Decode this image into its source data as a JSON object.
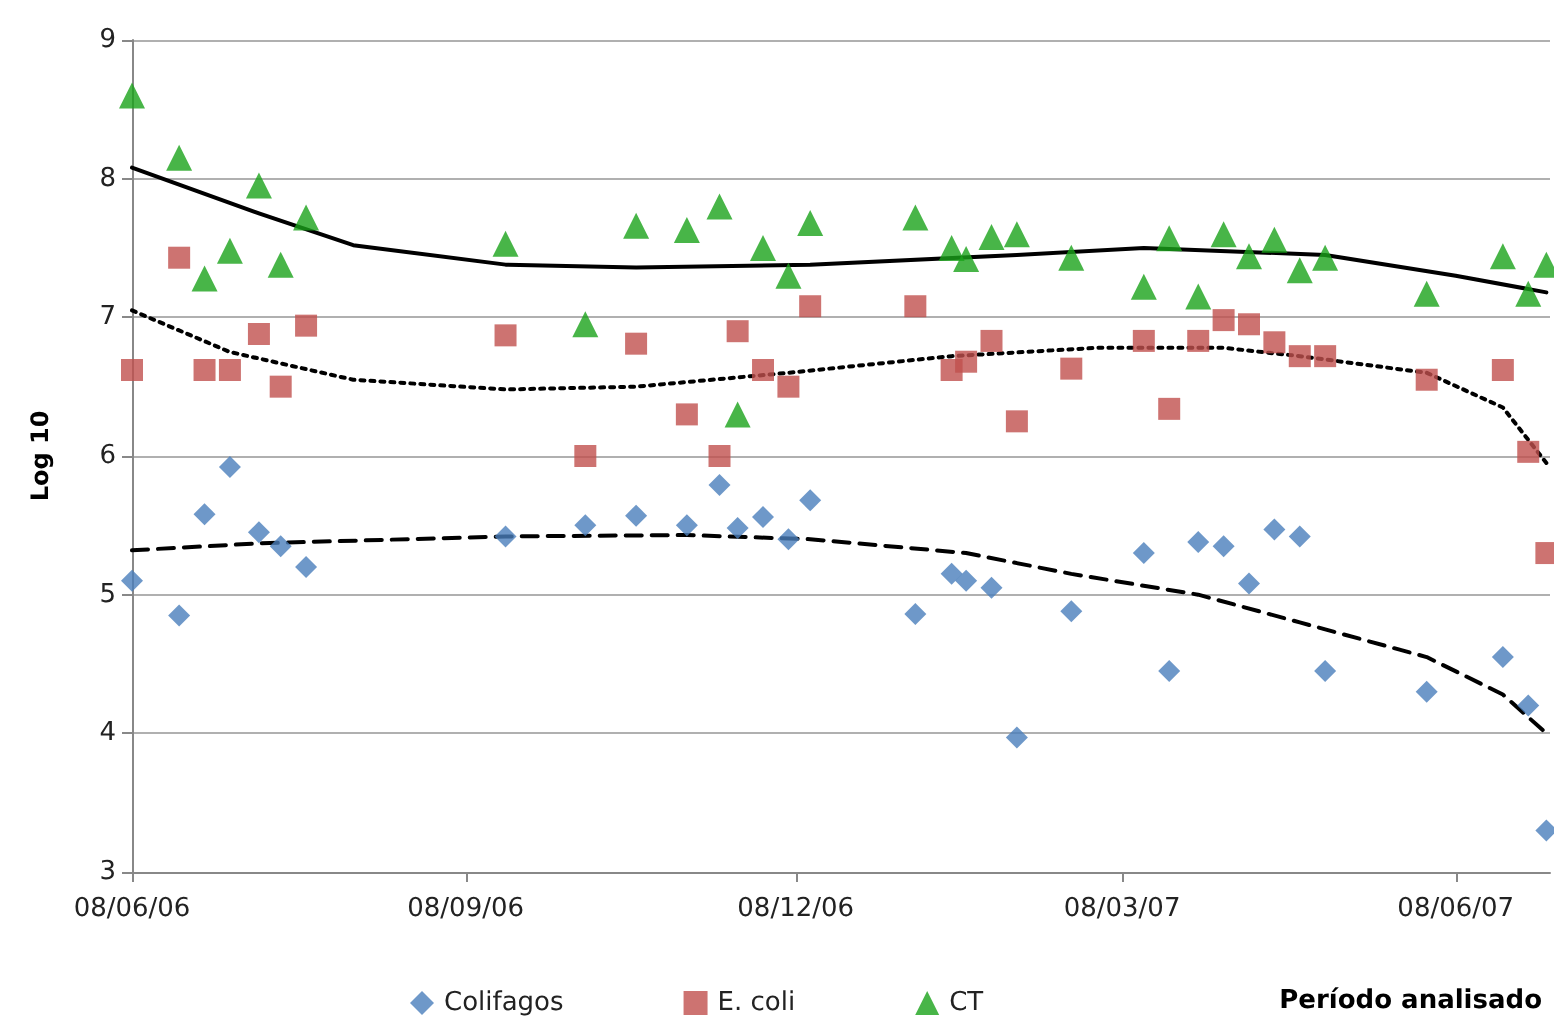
{
  "chart_data": {
    "type": "scatter",
    "xlabel": "Período analisado",
    "ylabel": "Log 10",
    "legend": "bottom",
    "grid": "y",
    "xlim": [
      "2006-06-08",
      "2007-07-04"
    ],
    "xticks": [
      {
        "value": "2006-06-08",
        "label": "08/06/06"
      },
      {
        "value": "2006-09-08",
        "label": "08/09/06"
      },
      {
        "value": "2006-12-08",
        "label": "08/12/06"
      },
      {
        "value": "2007-03-08",
        "label": "08/03/07"
      },
      {
        "value": "2007-06-08",
        "label": "08/06/07"
      }
    ],
    "ylim": [
      3,
      9
    ],
    "yticks": [
      3,
      4,
      5,
      6,
      7,
      8,
      9
    ],
    "x": [
      "2006-06-08",
      "2006-06-21",
      "2006-06-28",
      "2006-07-05",
      "2006-07-13",
      "2006-07-19",
      "2006-07-26",
      "2006-09-19",
      "2006-10-11",
      "2006-10-25",
      "2006-11-08",
      "2006-11-17",
      "2006-11-22",
      "2006-11-29",
      "2006-12-06",
      "2006-12-12",
      "2007-01-10",
      "2007-01-20",
      "2007-01-24",
      "2007-01-31",
      "2007-02-07",
      "2007-02-22",
      "2007-03-14",
      "2007-03-21",
      "2007-03-29",
      "2007-04-05",
      "2007-04-12",
      "2007-04-19",
      "2007-04-26",
      "2007-05-03",
      "2007-05-31",
      "2007-06-21",
      "2007-06-28",
      "2007-07-03"
    ],
    "series": [
      {
        "name": "Colifagos",
        "color": "#4a7ebb",
        "marker": "diamond",
        "values": [
          5.1,
          4.85,
          5.58,
          5.92,
          5.45,
          5.35,
          5.2,
          5.42,
          5.5,
          5.57,
          5.5,
          5.79,
          5.48,
          5.56,
          5.4,
          5.68,
          4.86,
          5.15,
          5.1,
          5.05,
          3.97,
          4.88,
          5.3,
          4.45,
          5.38,
          5.35,
          5.08,
          5.47,
          5.42,
          4.45,
          4.3,
          4.55,
          4.2,
          3.3
        ]
      },
      {
        "name": "E. coli",
        "color": "#c0504d",
        "marker": "square",
        "values": [
          6.62,
          7.43,
          6.62,
          6.62,
          6.88,
          6.5,
          6.94,
          6.87,
          6.0,
          6.81,
          6.3,
          6.0,
          6.9,
          6.62,
          6.5,
          7.08,
          7.08,
          6.62,
          6.68,
          6.83,
          6.25,
          6.63,
          6.83,
          6.34,
          6.83,
          6.98,
          6.95,
          6.82,
          6.72,
          6.72,
          6.55,
          6.62,
          6.03,
          5.3
        ]
      },
      {
        "name": "CT",
        "color": "#1aa31a",
        "marker": "triangle",
        "values": [
          8.6,
          8.15,
          7.28,
          7.48,
          7.95,
          7.38,
          7.72,
          7.53,
          6.95,
          7.66,
          7.63,
          7.8,
          6.3,
          7.5,
          7.3,
          7.68,
          7.72,
          7.5,
          7.42,
          7.58,
          7.6,
          7.43,
          7.22,
          7.57,
          7.15,
          7.6,
          7.44,
          7.56,
          7.34,
          7.43,
          7.17,
          7.44,
          7.17,
          7.38
        ]
      },
      {
        "type": "line",
        "color": "#000000",
        "marker": "none",
        "line_style": "solid",
        "x": [
          "2006-06-08",
          "2006-07-13",
          "2006-08-08",
          "2006-09-19",
          "2006-10-25",
          "2006-12-12",
          "2007-02-07",
          "2007-03-14",
          "2007-05-03",
          "2007-06-08",
          "2007-07-03"
        ],
        "values": [
          8.08,
          7.75,
          7.52,
          7.38,
          7.36,
          7.38,
          7.45,
          7.5,
          7.45,
          7.3,
          7.18
        ]
      },
      {
        "type": "line",
        "color": "#000000",
        "marker": "none",
        "line_style": "dotted",
        "x": [
          "2006-06-08",
          "2006-07-05",
          "2006-08-08",
          "2006-09-19",
          "2006-10-25",
          "2006-12-06",
          "2007-01-20",
          "2007-03-01",
          "2007-04-05",
          "2007-04-26",
          "2007-05-31",
          "2007-06-21",
          "2007-07-03"
        ],
        "values": [
          7.05,
          6.75,
          6.55,
          6.48,
          6.5,
          6.6,
          6.72,
          6.78,
          6.78,
          6.72,
          6.6,
          6.35,
          5.95
        ]
      },
      {
        "type": "line",
        "color": "#000000",
        "marker": "none",
        "line_style": "dashed",
        "x": [
          "2006-06-08",
          "2006-07-13",
          "2006-09-19",
          "2006-11-08",
          "2006-12-12",
          "2007-01-24",
          "2007-02-22",
          "2007-03-29",
          "2007-04-26",
          "2007-05-31",
          "2007-06-21",
          "2007-07-03"
        ],
        "values": [
          5.32,
          5.37,
          5.42,
          5.43,
          5.4,
          5.3,
          5.15,
          5.0,
          4.8,
          4.55,
          4.28,
          4.0
        ]
      }
    ]
  }
}
